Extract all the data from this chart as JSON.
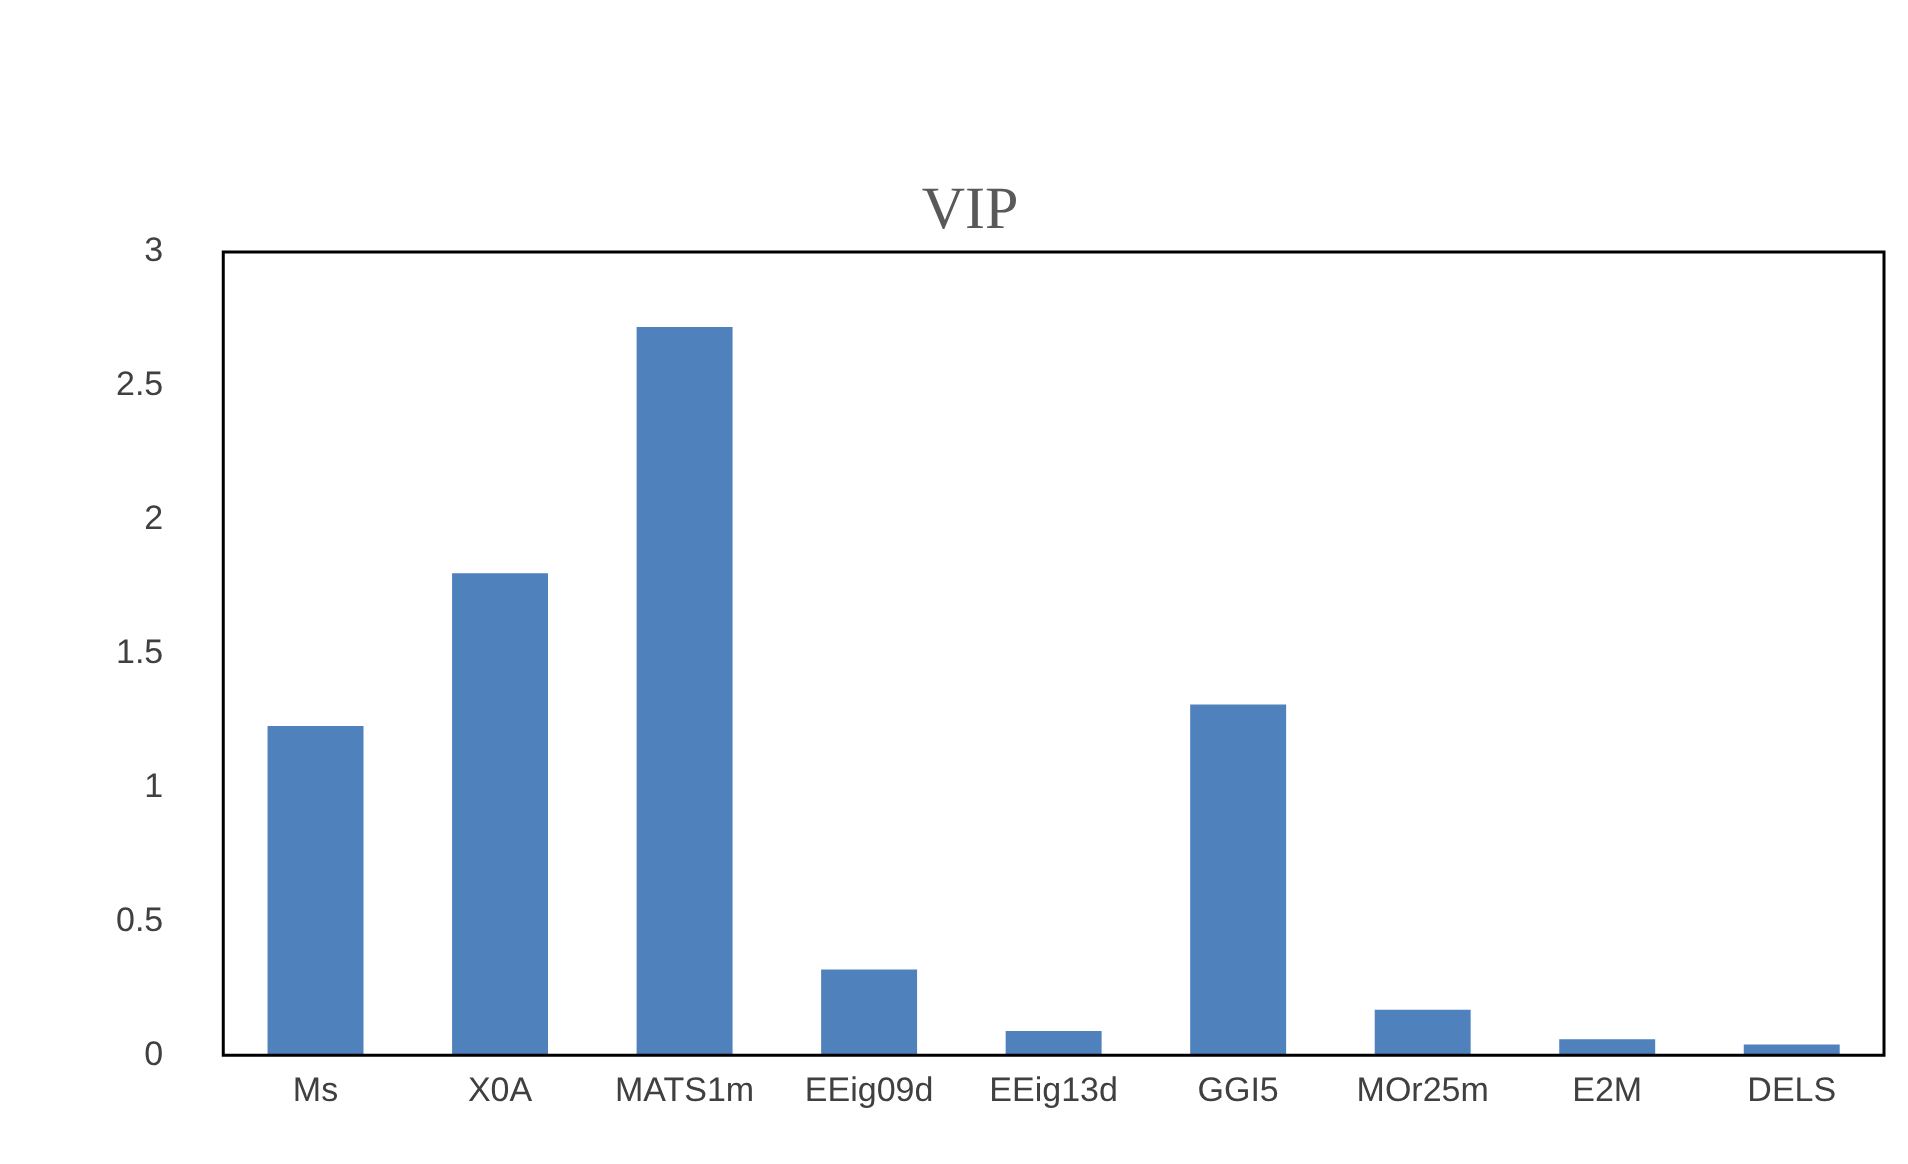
{
  "chart_data": {
    "type": "bar",
    "title": "VIP",
    "categories": [
      "Ms",
      "X0A",
      "MATS1m",
      "EEig09d",
      "EEig13d",
      "GGI5",
      "MOr25m",
      "E2M",
      "DELS"
    ],
    "values": [
      1.23,
      1.8,
      2.72,
      0.32,
      0.09,
      1.31,
      0.17,
      0.06,
      0.04
    ],
    "color": "#4f81bd",
    "ylim": [
      0,
      3
    ],
    "yticks": [
      0,
      0.5,
      1,
      1.5,
      2,
      2.5,
      3
    ],
    "grid": false,
    "legend": false
  }
}
